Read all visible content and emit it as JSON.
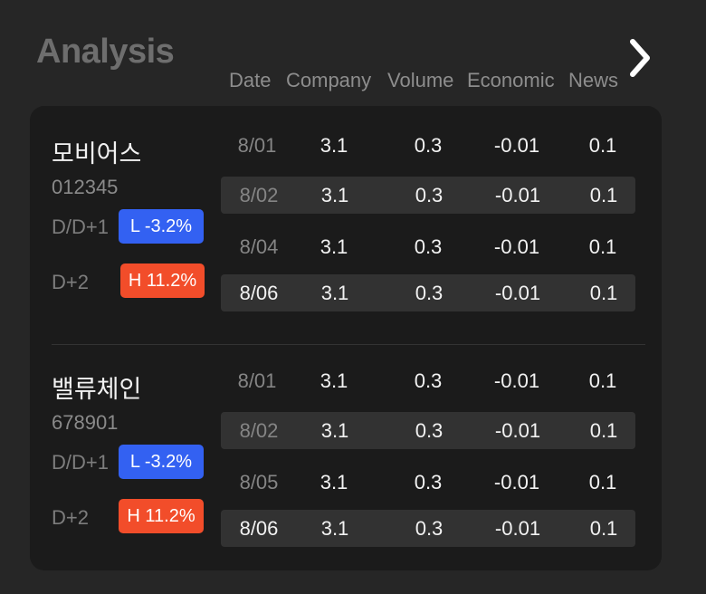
{
  "header": {
    "title": "Analysis",
    "columns": [
      "Date",
      "Company",
      "Volume",
      "Economic",
      "News"
    ]
  },
  "stocks": [
    {
      "name": "모비어스",
      "code": "012345",
      "d1_label": "D/D+1",
      "d1_badge": "L -3.2%",
      "d2_label": "D+2",
      "d2_badge": "H 11.2%",
      "rows": [
        {
          "date": "8/01",
          "company": "3.1",
          "volume": "0.3",
          "economic": "-0.01",
          "news": "0.1"
        },
        {
          "date": "8/02",
          "company": "3.1",
          "volume": "0.3",
          "economic": "-0.01",
          "news": "0.1"
        },
        {
          "date": "8/04",
          "company": "3.1",
          "volume": "0.3",
          "economic": "-0.01",
          "news": "0.1"
        },
        {
          "date": "8/06",
          "company": "3.1",
          "volume": "0.3",
          "economic": "-0.01",
          "news": "0.1"
        }
      ]
    },
    {
      "name": "밸류체인",
      "code": "678901",
      "d1_label": "D/D+1",
      "d1_badge": "L -3.2%",
      "d2_label": "D+2",
      "d2_badge": "H 11.2%",
      "rows": [
        {
          "date": "8/01",
          "company": "3.1",
          "volume": "0.3",
          "economic": "-0.01",
          "news": "0.1"
        },
        {
          "date": "8/02",
          "company": "3.1",
          "volume": "0.3",
          "economic": "-0.01",
          "news": "0.1"
        },
        {
          "date": "8/05",
          "company": "3.1",
          "volume": "0.3",
          "economic": "-0.01",
          "news": "0.1"
        },
        {
          "date": "8/06",
          "company": "3.1",
          "volume": "0.3",
          "economic": "-0.01",
          "news": "0.1"
        }
      ]
    }
  ],
  "colors": {
    "background": "#262626",
    "card": "#1b1b1b",
    "low_badge": "#3361f2",
    "high_badge": "#f24d2a"
  },
  "icons": {
    "next": "chevron-right-icon"
  }
}
